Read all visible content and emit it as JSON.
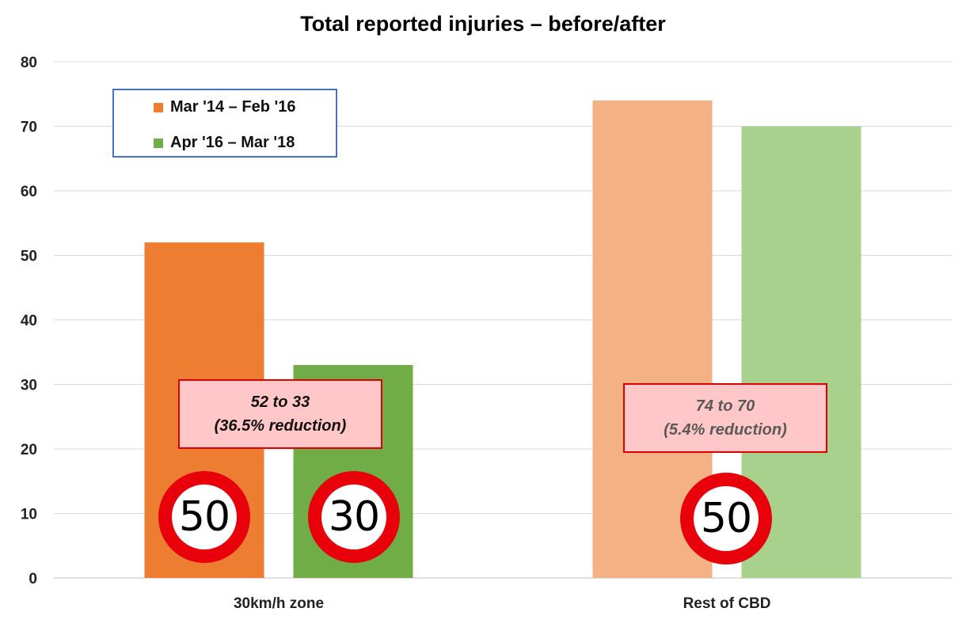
{
  "chart_data": {
    "type": "bar",
    "title": "Total reported injuries – before/after",
    "categories": [
      "30km/h zone",
      "Rest of CBD"
    ],
    "series": [
      {
        "name": "Mar '14 – Feb '16",
        "values": [
          52,
          74
        ]
      },
      {
        "name": "Apr '16 – Mar '18",
        "values": [
          33,
          70
        ]
      }
    ],
    "ylim": [
      0,
      80
    ],
    "yticks": [
      0,
      10,
      20,
      30,
      40,
      50,
      60,
      70,
      80
    ],
    "grid": true,
    "legend_position": "top-left",
    "colors": {
      "before_zone": "#ed7d31",
      "after_zone": "#70ad47",
      "before_rest": "#f4b183",
      "after_rest": "#a9d18e"
    },
    "annotations": [
      {
        "line1": "52 to 33",
        "line2": "(36.5% reduction)",
        "color": "#111111"
      },
      {
        "line1": "74 to 70",
        "line2": "(5.4% reduction)",
        "color": "#595959"
      }
    ],
    "speed_signs": [
      "50",
      "30",
      "50"
    ]
  }
}
